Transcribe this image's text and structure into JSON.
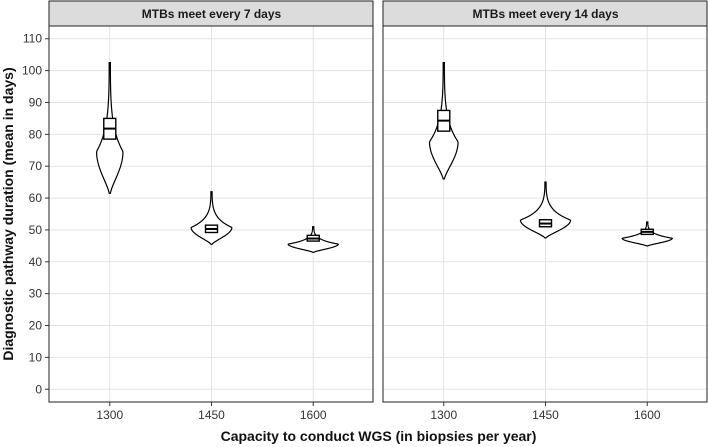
{
  "chart_data": {
    "type": "violin",
    "xlabel": "Capacity to conduct WGS (in biopsies per year)",
    "ylabel": "Diagnostic pathway duration (mean in days)",
    "ylim": [
      -4,
      114
    ],
    "yticks": [
      0,
      10,
      20,
      30,
      40,
      50,
      60,
      70,
      80,
      90,
      100,
      110
    ],
    "categories": [
      "1300",
      "1450",
      "1600"
    ],
    "grid": true,
    "panels": [
      {
        "title": "MTBs meet every 7 days",
        "violins": [
          {
            "category": "1300",
            "min": 61.5,
            "max": 102.5,
            "q1": 78.5,
            "median": 81.8,
            "q3": 85.0,
            "max_halfwidth_days_scale": 0.35
          },
          {
            "category": "1450",
            "min": 45.5,
            "max": 62.0,
            "q1": 49.2,
            "median": 50.3,
            "q3": 51.5,
            "max_halfwidth_days_scale": 0.55
          },
          {
            "category": "1600",
            "min": 43.0,
            "max": 51.0,
            "q1": 46.5,
            "median": 47.3,
            "q3": 48.3,
            "max_halfwidth_days_scale": 0.68
          }
        ]
      },
      {
        "title": "MTBs meet every 14 days",
        "violins": [
          {
            "category": "1300",
            "min": 66.0,
            "max": 102.5,
            "q1": 81.0,
            "median": 84.3,
            "q3": 87.5,
            "max_halfwidth_days_scale": 0.38
          },
          {
            "category": "1450",
            "min": 47.5,
            "max": 65.0,
            "q1": 51.0,
            "median": 52.0,
            "q3": 53.2,
            "max_halfwidth_days_scale": 0.68
          },
          {
            "category": "1600",
            "min": 45.0,
            "max": 52.5,
            "q1": 48.6,
            "median": 49.4,
            "q3": 50.2,
            "max_halfwidth_days_scale": 0.68
          }
        ]
      }
    ]
  }
}
